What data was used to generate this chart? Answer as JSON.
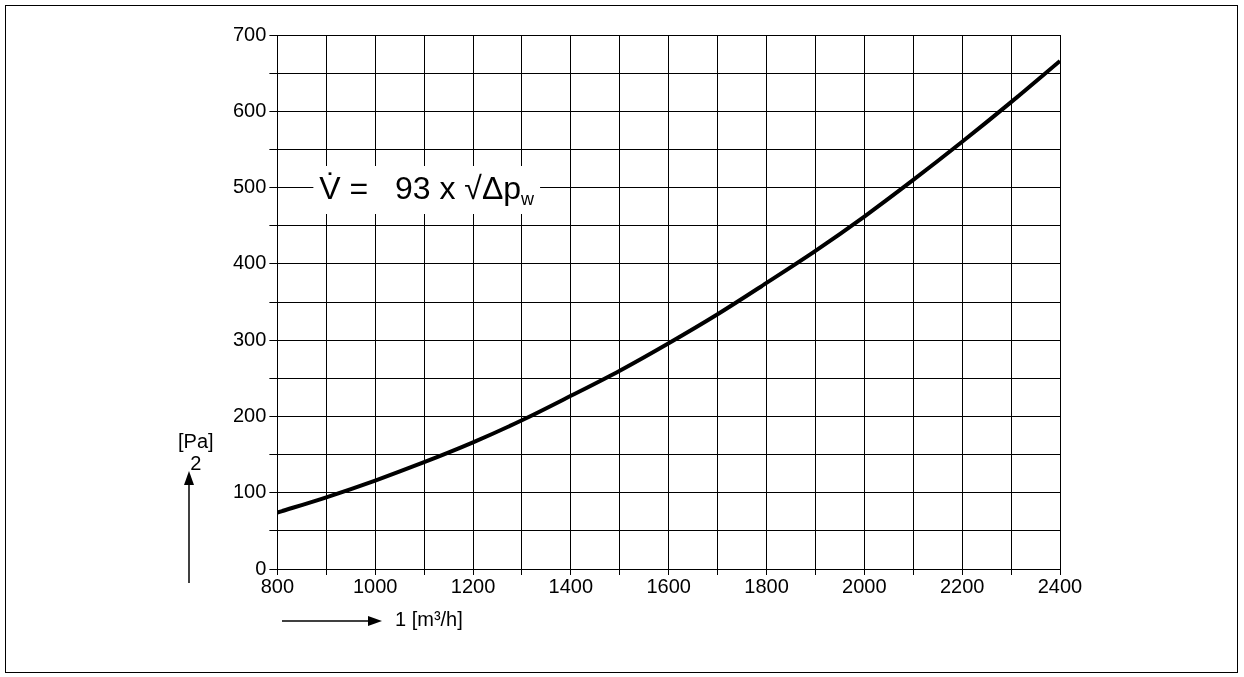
{
  "chart_data": {
    "type": "line",
    "xlabel": "1   [m³/h]",
    "ylabel": "[Pa]\n2",
    "annotations": [
      "V̇ =   93 x √Δp$_{w}$"
    ],
    "x": [
      800,
      900,
      1000,
      1100,
      1200,
      1300,
      1400,
      1500,
      1600,
      1700,
      1800,
      1900,
      2000,
      2100,
      2200,
      2300,
      2400
    ],
    "series": [
      {
        "color": "#000000",
        "values": [
          74,
          94,
          116,
          140,
          166,
          195,
          227,
          260,
          296,
          334,
          375,
          417,
          462,
          510,
          560,
          612,
          666
        ]
      }
    ],
    "xlim": [
      800,
      2400
    ],
    "xticks": [
      800,
      {
        "value": 900,
        "label": null
      },
      1000,
      {
        "value": 1100,
        "label": null
      },
      1200,
      {
        "value": 1300,
        "label": null
      },
      1400,
      {
        "value": 1500,
        "label": null
      },
      1600,
      {
        "value": 1700,
        "label": null
      },
      1800,
      {
        "value": 1900,
        "label": null
      },
      2000,
      {
        "value": 2100,
        "label": null
      },
      2200,
      {
        "value": 2300,
        "label": null
      },
      2400
    ],
    "ylim": [
      0,
      700
    ],
    "yticks": [
      0,
      {
        "value": 50,
        "label": null
      },
      100,
      {
        "value": 150,
        "label": null
      },
      200,
      {
        "value": 250,
        "label": null
      },
      300,
      {
        "value": 350,
        "label": null
      },
      400,
      {
        "value": 450,
        "label": null
      },
      500,
      {
        "value": 550,
        "label": null
      },
      600,
      {
        "value": 650,
        "label": null
      },
      700
    ],
    "grid": true,
    "legend": false,
    "marker": "none",
    "line_style": "solid"
  }
}
